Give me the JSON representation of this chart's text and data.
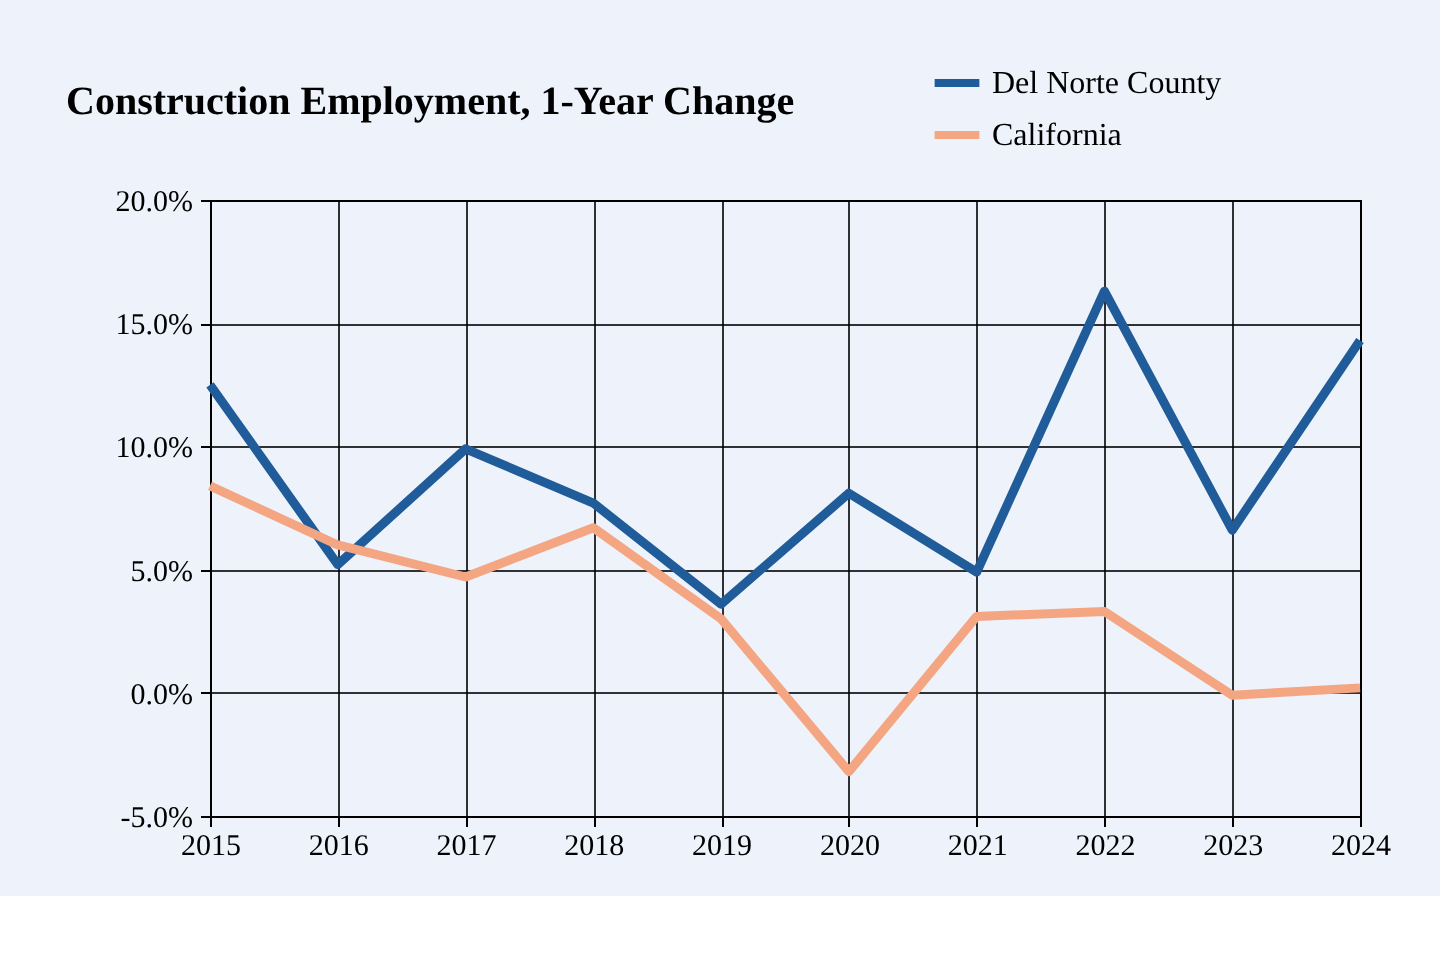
{
  "chart_data": {
    "type": "line",
    "title": "Construction Employment, 1-Year Change",
    "x": [
      2015,
      2016,
      2017,
      2018,
      2019,
      2020,
      2021,
      2022,
      2023,
      2024
    ],
    "series": [
      {
        "name": "Del Norte County",
        "color": "#1f5c99",
        "values": [
          12.5,
          5.2,
          9.9,
          7.7,
          3.6,
          8.1,
          4.9,
          16.3,
          6.6,
          14.3
        ]
      },
      {
        "name": "California",
        "color": "#f4a582",
        "values": [
          8.4,
          6.0,
          4.7,
          6.7,
          3.0,
          -3.2,
          3.1,
          3.3,
          -0.1,
          0.2
        ]
      }
    ],
    "xlim": [
      2015,
      2024
    ],
    "xticks": [
      2015,
      2016,
      2017,
      2018,
      2019,
      2020,
      2021,
      2022,
      2023,
      2024
    ],
    "ylim": [
      -5,
      20
    ],
    "yticks": [
      {
        "value": -5,
        "label": "-5.0%"
      },
      {
        "value": 0,
        "label": "0.0%"
      },
      {
        "value": 5,
        "label": "5.0%"
      },
      {
        "value": 10,
        "label": "10.0%"
      },
      {
        "value": 15,
        "label": "15.0%"
      },
      {
        "value": 20,
        "label": "20.0%"
      }
    ],
    "grid": true,
    "legend": "top right",
    "marker": "none",
    "line_style": "solid"
  }
}
